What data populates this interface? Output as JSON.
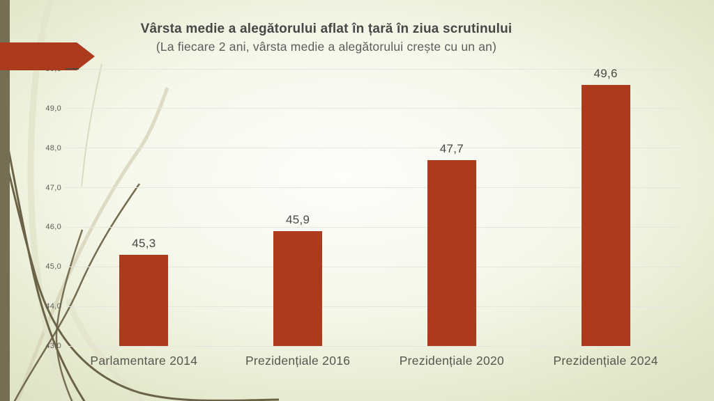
{
  "slide": {
    "title": "Vârsta medie a alegătorului aflat în țară în ziua scrutinului",
    "subtitle": "(La fiecare 2 ani, vârsta medie a alegătorului crește cu un an)"
  },
  "chart_data": {
    "type": "bar",
    "title": "Vârsta medie a alegătorului aflat în țară în ziua scrutinului",
    "subtitle": "(La fiecare 2 ani, vârsta medie a alegătorului crește cu un an)",
    "categories": [
      "Parlamentare 2014",
      "Prezidențiale 2016",
      "Prezidențiale 2020",
      "Prezidențiale 2024"
    ],
    "values": [
      45.3,
      45.9,
      47.7,
      49.6
    ],
    "value_labels": [
      "45,3",
      "45,9",
      "47,7",
      "49,6"
    ],
    "xlabel": "",
    "ylabel": "",
    "ylim": [
      43.0,
      50.0
    ],
    "ytick_step": 1.0,
    "ytick_labels": [
      "43,0",
      "44,0",
      "45,0",
      "46,0",
      "47,0",
      "48,0",
      "49,0",
      "50,0"
    ],
    "grid": true,
    "legend": false,
    "bar_color": "#AC3A1C"
  },
  "decor": {
    "arrow_color": "#AC3A1C",
    "sidebar_color": "#746E52",
    "curve_dark": "#6B6348",
    "curve_light": "#D4D2B6",
    "curve_lighter": "#E2E4CB",
    "background_center": "#FDFDFB",
    "background_edge": "#DCE2C3",
    "grid_color": "#E5E5DD"
  }
}
